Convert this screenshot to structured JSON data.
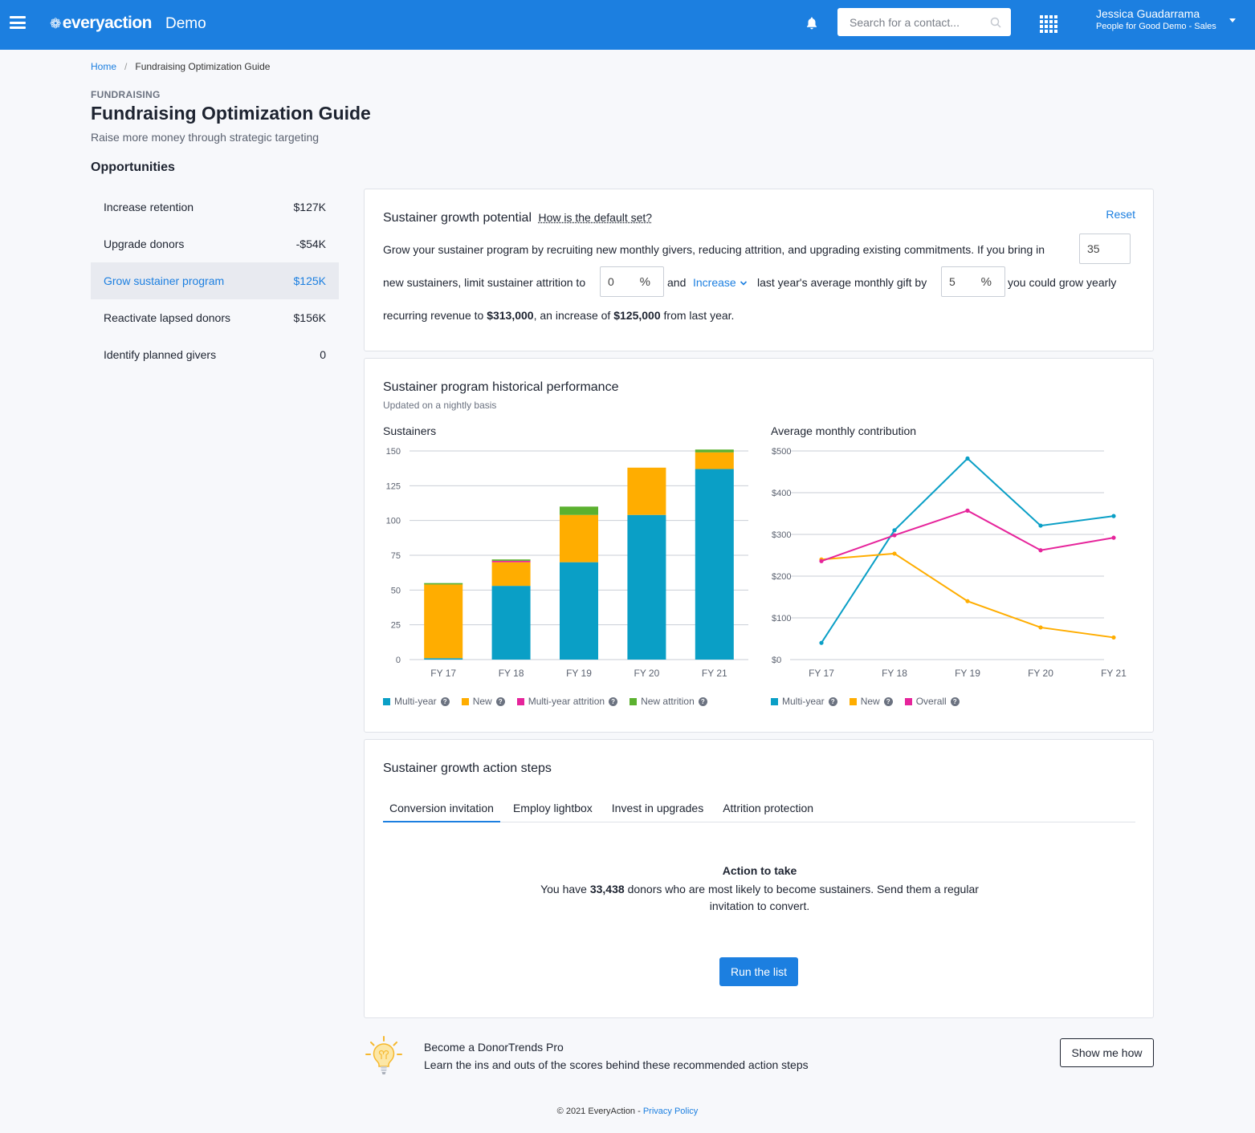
{
  "topbar": {
    "brand": "everyaction",
    "env": "Demo",
    "search_placeholder": "Search for a contact...",
    "user_name": "Jessica Guadarrama",
    "user_org": "People for Good Demo - Sales",
    "brand_color": "#1c7fe0"
  },
  "breadcrumb": {
    "home": "Home",
    "current": "Fundraising Optimization Guide"
  },
  "page": {
    "eyebrow": "FUNDRAISING",
    "title": "Fundraising Optimization Guide",
    "subtitle": "Raise more money through strategic targeting",
    "opportunities_heading": "Opportunities"
  },
  "opportunities": [
    {
      "label": "Increase retention",
      "value": "$127K"
    },
    {
      "label": "Upgrade donors",
      "value": "-$54K"
    },
    {
      "label": "Grow sustainer program",
      "value": "$125K",
      "active": true
    },
    {
      "label": "Reactivate lapsed donors",
      "value": "$156K"
    },
    {
      "label": "Identify planned givers",
      "value": "0"
    }
  ],
  "growth": {
    "title": "Sustainer growth potential",
    "help_link": "How is the default set?",
    "reset": "Reset",
    "text1": "Grow your sustainer program by recruiting new monthly givers, reducing attrition, and upgrading existing commitments. If you bring in",
    "new_sustainers": "35",
    "text2": "new sustainers, limit sustainer attrition to",
    "attrition": "0",
    "pct": "%",
    "text3": "and",
    "direction": "Increase",
    "text4": "last year's average monthly gift by",
    "gift_increase": "5",
    "text5": "you could grow yearly",
    "text6a": "recurring revenue to",
    "revenue": "$313,000",
    "text6b": ", an increase of",
    "increase": "$125,000",
    "text6c": "from last year."
  },
  "history": {
    "title": "Sustainer program historical performance",
    "updated": "Updated on a nightly basis"
  },
  "chart_data": [
    {
      "type": "bar",
      "title": "Sustainers",
      "categories": [
        "FY 17",
        "FY 18",
        "FY 19",
        "FY 20",
        "FY 21"
      ],
      "stacked": true,
      "ylim": [
        0,
        150
      ],
      "yticks": [
        0,
        25,
        50,
        75,
        100,
        125,
        150
      ],
      "grid": true,
      "legend": "bottom",
      "series": [
        {
          "name": "Multi-year",
          "color": "#0a9fc6",
          "values": [
            1,
            53,
            70,
            104,
            137
          ]
        },
        {
          "name": "New",
          "color": "#ffad00",
          "values": [
            53,
            17,
            34,
            34,
            12
          ]
        },
        {
          "name": "Multi-year attrition",
          "color": "#e6249b",
          "values": [
            0,
            1,
            0,
            0,
            0
          ]
        },
        {
          "name": "New attrition",
          "color": "#5bb12f",
          "values": [
            1,
            1,
            6,
            0,
            2
          ]
        }
      ]
    },
    {
      "type": "line",
      "title": "Average monthly contribution",
      "categories": [
        "FY 17",
        "FY 18",
        "FY 19",
        "FY 20",
        "FY 21"
      ],
      "ylim": [
        0,
        500
      ],
      "yticks": [
        "$0",
        "$100",
        "$200",
        "$300",
        "$400",
        "$500"
      ],
      "ytick_values": [
        0,
        100,
        200,
        300,
        400,
        500
      ],
      "grid": true,
      "legend": "bottom",
      "series": [
        {
          "name": "Multi-year",
          "color": "#0a9fc6",
          "values": [
            40,
            310,
            482,
            321,
            344
          ]
        },
        {
          "name": "New",
          "color": "#ffad00",
          "values": [
            240,
            254,
            140,
            77,
            53
          ]
        },
        {
          "name": "Overall",
          "color": "#e6249b",
          "values": [
            236,
            298,
            357,
            262,
            292
          ]
        }
      ]
    }
  ],
  "steps": {
    "title": "Sustainer growth action steps",
    "tabs": [
      "Conversion invitation",
      "Employ lightbox",
      "Invest in upgrades",
      "Attrition protection"
    ],
    "action_heading": "Action to take",
    "action_a": "You have",
    "donors": "33,438",
    "action_b": "donors who are most likely to become sustainers. Send them a regular invitation to convert.",
    "button": "Run the list"
  },
  "pro": {
    "title": "Become a DonorTrends Pro",
    "text": "Learn the ins and outs of the scores behind these recommended action steps",
    "button": "Show me how"
  },
  "footer": {
    "copyright": "© 2021 EveryAction -",
    "privacy": "Privacy Policy"
  }
}
